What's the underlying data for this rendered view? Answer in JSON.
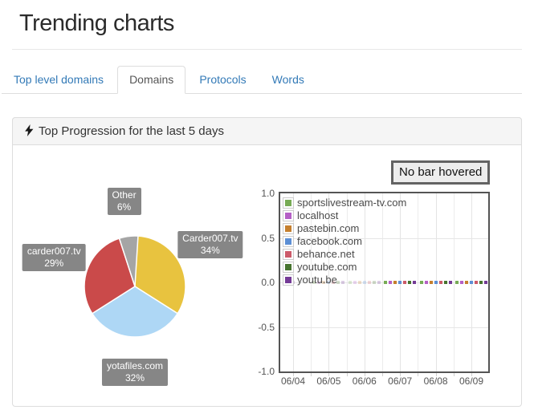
{
  "page": {
    "title": "Trending charts"
  },
  "tabs": [
    {
      "label": "Top level domains",
      "active": false
    },
    {
      "label": "Domains",
      "active": true
    },
    {
      "label": "Protocols",
      "active": false
    },
    {
      "label": "Words",
      "active": false
    }
  ],
  "panel": {
    "heading": "Top Progression for the last 5 days",
    "icon": "lightning-bolt-icon"
  },
  "hover_status": "No bar hovered",
  "chart_data": [
    {
      "type": "pie",
      "slices": [
        {
          "label": "Carder007.tv",
          "value_pct": 34,
          "color": "#e8c33f"
        },
        {
          "label": "yotafiles.com",
          "value_pct": 32,
          "color": "#aed7f5"
        },
        {
          "label": "carder007.tv",
          "value_pct": 29,
          "color": "#ca4a4a"
        },
        {
          "label": "Other",
          "value_pct": 6,
          "color": "#a5a5a5"
        }
      ],
      "start_angle_deg_clockwise_from_top": 0,
      "label_style": {
        "bg": "#868686",
        "text": "#ffffff"
      }
    },
    {
      "type": "bar",
      "x_categories": [
        "06/04",
        "06/05",
        "06/06",
        "06/07",
        "06/08",
        "06/09"
      ],
      "ylim": [
        -1,
        1
      ],
      "y_tick_labels": [
        "1.0",
        "0.5",
        "0.0",
        "-0.5",
        "-1.0"
      ],
      "grid": true,
      "legend_position": "top-left",
      "series": [
        {
          "name": "sportslivestream-tv.com",
          "color": "#77ab55",
          "values": [
            null,
            0.02,
            0.02,
            0.02,
            0.02,
            0.02
          ]
        },
        {
          "name": "localhost",
          "color": "#b55fc6",
          "values": [
            null,
            0.02,
            0.02,
            0.02,
            0.02,
            0.02
          ]
        },
        {
          "name": "pastebin.com",
          "color": "#c57f2e",
          "values": [
            null,
            0.02,
            0.02,
            0.02,
            0.02,
            0.02
          ]
        },
        {
          "name": "facebook.com",
          "color": "#5c8fd5",
          "values": [
            null,
            0.02,
            0.02,
            0.02,
            0.02,
            0.02
          ]
        },
        {
          "name": "behance.net",
          "color": "#cc5a69",
          "values": [
            null,
            0.02,
            0.02,
            0.02,
            0.02,
            0.02
          ]
        },
        {
          "name": "youtube.com",
          "color": "#47742f",
          "values": [
            null,
            0.02,
            0.02,
            0.02,
            0.02,
            0.02
          ]
        },
        {
          "name": "youtu.be",
          "color": "#743a96",
          "values": [
            0.02,
            0.02,
            0.02,
            0.02,
            0.02,
            0.02
          ]
        }
      ],
      "muted_day_indices": [
        0,
        1,
        2
      ]
    }
  ]
}
